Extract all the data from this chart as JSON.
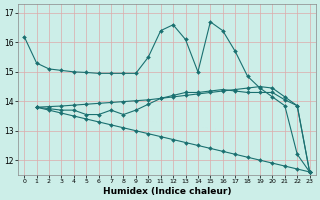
{
  "xlabel": "Humidex (Indice chaleur)",
  "bg_color": "#cceee8",
  "grid_color": "#ddaaaa",
  "line_color": "#1a7070",
  "xlim": [
    -0.5,
    23.5
  ],
  "ylim": [
    11.5,
    17.3
  ],
  "xticks": [
    0,
    1,
    2,
    3,
    4,
    5,
    6,
    7,
    8,
    9,
    10,
    11,
    12,
    13,
    14,
    15,
    16,
    17,
    18,
    19,
    20,
    21,
    22,
    23
  ],
  "yticks": [
    12,
    13,
    14,
    15,
    16,
    17
  ],
  "s1_x": [
    0,
    1,
    2,
    3,
    4,
    5,
    6,
    7,
    8,
    9,
    10,
    11,
    12,
    13,
    14,
    15,
    16,
    17,
    18,
    19,
    20,
    21,
    22,
    23
  ],
  "s1_y": [
    16.2,
    15.3,
    15.1,
    15.05,
    15.0,
    14.98,
    14.95,
    14.95,
    14.95,
    14.95,
    15.5,
    16.4,
    16.6,
    16.1,
    15.0,
    16.7,
    16.4,
    15.7,
    14.85,
    14.45,
    14.15,
    13.85,
    12.2,
    11.6
  ],
  "s2_x": [
    1,
    2,
    3,
    4,
    5,
    6,
    7,
    8,
    9,
    10,
    11,
    12,
    13,
    14,
    15,
    16,
    17,
    18,
    19,
    20,
    21,
    22,
    23
  ],
  "s2_y": [
    13.8,
    13.82,
    13.84,
    13.87,
    13.9,
    13.93,
    13.96,
    13.99,
    14.02,
    14.05,
    14.1,
    14.15,
    14.2,
    14.25,
    14.3,
    14.35,
    14.4,
    14.45,
    14.5,
    14.45,
    14.15,
    13.85,
    11.6
  ],
  "s3_x": [
    1,
    2,
    3,
    4,
    5,
    6,
    7,
    8,
    9,
    10,
    11,
    12,
    13,
    14,
    15,
    16,
    17,
    18,
    19,
    20,
    21,
    22,
    23
  ],
  "s3_y": [
    13.8,
    13.75,
    13.7,
    13.7,
    13.55,
    13.55,
    13.7,
    13.55,
    13.7,
    13.9,
    14.1,
    14.2,
    14.3,
    14.3,
    14.35,
    14.4,
    14.35,
    14.3,
    14.3,
    14.3,
    14.05,
    13.85,
    11.6
  ],
  "s4_x": [
    1,
    2,
    3,
    4,
    5,
    6,
    7,
    8,
    9,
    10,
    11,
    12,
    13,
    14,
    15,
    16,
    17,
    18,
    19,
    20,
    21,
    22,
    23
  ],
  "s4_y": [
    13.8,
    13.7,
    13.6,
    13.5,
    13.4,
    13.3,
    13.2,
    13.1,
    13.0,
    12.9,
    12.8,
    12.7,
    12.6,
    12.5,
    12.4,
    12.3,
    12.2,
    12.1,
    12.0,
    11.9,
    11.8,
    11.7,
    11.6
  ]
}
